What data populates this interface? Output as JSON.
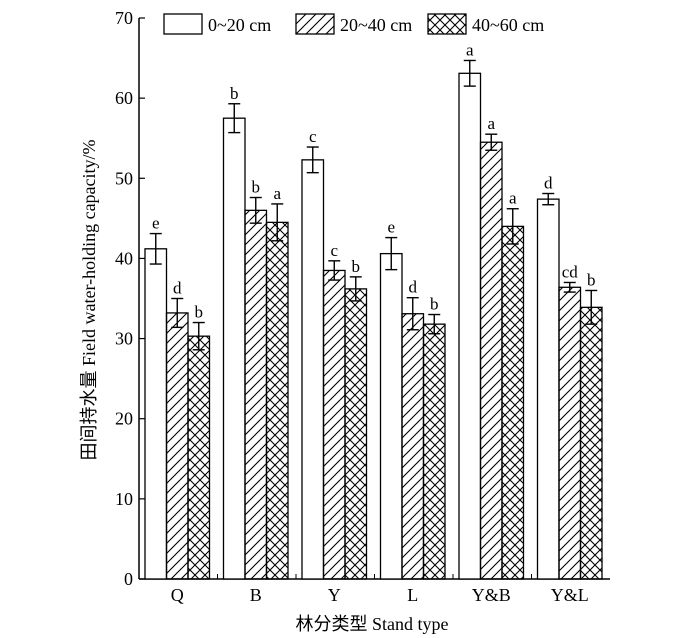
{
  "chart_data": {
    "type": "bar",
    "title": "",
    "xlabel": "林分类型 Stand type",
    "ylabel": "田间持水量 Field water-holding capacity/%",
    "ylim": [
      0,
      70
    ],
    "yticks": [
      0,
      10,
      20,
      30,
      40,
      50,
      60,
      70
    ],
    "grid": false,
    "legend_position": "top",
    "categories": [
      "Q",
      "B",
      "Y",
      "L",
      "Y&B",
      "Y&L"
    ],
    "series": [
      {
        "name": "0~20 cm",
        "pattern": "none",
        "values": [
          41.2,
          57.5,
          52.3,
          40.6,
          63.1,
          47.4
        ],
        "errors": [
          1.9,
          1.8,
          1.6,
          2.0,
          1.6,
          0.7
        ],
        "labels": [
          "e",
          "b",
          "c",
          "e",
          "a",
          "d"
        ]
      },
      {
        "name": "20~40 cm",
        "pattern": "diagonal",
        "values": [
          33.2,
          46.0,
          38.5,
          33.1,
          54.5,
          36.4
        ],
        "errors": [
          1.8,
          1.6,
          1.2,
          2.0,
          1.0,
          0.6
        ],
        "labels": [
          "d",
          "b",
          "c",
          "d",
          "a",
          "cd"
        ]
      },
      {
        "name": "40~60 cm",
        "pattern": "crosshatch",
        "values": [
          30.3,
          44.5,
          36.2,
          31.8,
          44.0,
          33.9
        ],
        "errors": [
          1.7,
          2.3,
          1.5,
          1.2,
          2.2,
          2.1
        ],
        "labels": [
          "b",
          "a",
          "b",
          "b",
          "a",
          "b"
        ]
      }
    ],
    "colors": {
      "bar_fill": "#ffffff",
      "stroke": "#000000"
    }
  }
}
